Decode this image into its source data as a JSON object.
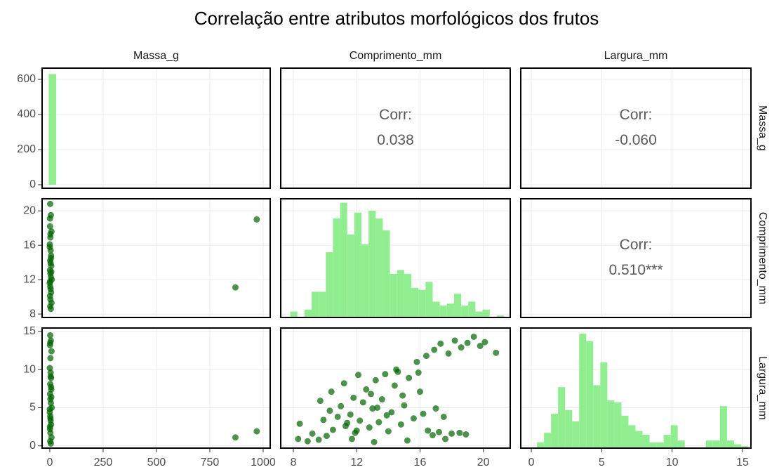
{
  "chart_data": {
    "type": "pairs",
    "title": "Correlação entre atributos morfológicos dos frutos",
    "point_color": "#006400",
    "bar_color": "#90ee90",
    "grid": true,
    "columns": [
      {
        "name": "Massa_g",
        "xlim": [
          -36,
          1033
        ],
        "xticks": [
          0,
          250,
          500,
          750,
          1000
        ]
      },
      {
        "name": "Comprimento_mm",
        "xlim": [
          7.2,
          21.7
        ],
        "xticks": [
          8,
          12,
          16,
          20
        ]
      },
      {
        "name": "Largura_mm",
        "xlim": [
          -0.75,
          15.6
        ],
        "xticks": [
          0,
          5,
          10,
          15
        ]
      }
    ],
    "rows": [
      {
        "name": "Massa_g",
        "ylim": [
          -20,
          664
        ],
        "yticks": [
          0,
          200,
          400,
          600
        ]
      },
      {
        "name": "Comprimento_mm",
        "ylim": [
          7.6,
          21.4
        ],
        "yticks": [
          8,
          12,
          16,
          20
        ]
      },
      {
        "name": "Largura_mm",
        "ylim": [
          -0.3,
          15.45
        ],
        "yticks": [
          0,
          5,
          10,
          15
        ]
      }
    ],
    "panels": [
      {
        "type": "histogram",
        "bins": [
          -5,
          30
        ],
        "counts": [
          630
        ]
      },
      {
        "type": "corr",
        "label": "Corr:",
        "values": [
          0.038
        ],
        "value_labels": [
          "0.038"
        ]
      },
      {
        "type": "corr",
        "label": "Corr:",
        "values": [
          -0.06
        ],
        "value_labels": [
          "-0.060"
        ]
      },
      {
        "type": "scatter",
        "x": [
          2,
          5,
          1,
          8,
          3,
          0,
          4,
          6,
          2,
          7,
          1,
          3,
          5,
          9,
          0,
          2,
          4,
          6,
          1,
          3,
          8,
          2,
          5,
          0,
          3,
          7,
          1,
          4,
          2,
          6,
          870,
          970
        ],
        "y": [
          20.8,
          19.5,
          18.2,
          17.6,
          16.9,
          16.1,
          15.4,
          14.8,
          14.2,
          13.6,
          13.1,
          12.7,
          12.3,
          12.0,
          11.6,
          11.2,
          10.9,
          10.5,
          10.1,
          9.7,
          9.3,
          8.9,
          8.6,
          15.8,
          17.3,
          12.9,
          19.1,
          13.9,
          11.8,
          14.5,
          11.1,
          19.0
        ]
      },
      {
        "type": "histogram",
        "ylim": [
          0,
          60
        ],
        "bins": [
          7.8,
          8.25,
          8.7,
          9.15,
          9.6,
          10.05,
          10.5,
          10.95,
          11.4,
          11.85,
          12.3,
          12.75,
          13.2,
          13.65,
          14.1,
          14.55,
          15,
          15.45,
          15.9,
          16.35,
          16.8,
          17.25,
          17.7,
          18.15,
          18.6,
          19.05,
          19.5,
          19.95,
          20.4,
          20.85,
          21.3
        ],
        "counts": [
          3,
          0,
          4,
          13,
          13,
          33,
          50,
          58,
          42,
          53,
          37,
          54,
          50,
          44,
          22,
          24,
          22,
          15,
          14,
          18,
          8,
          6,
          7,
          12,
          6,
          8,
          3,
          4,
          0,
          1
        ]
      },
      {
        "type": "corr",
        "label": "Corr:",
        "values": [
          0.51
        ],
        "value_labels": [
          "0.510***"
        ]
      },
      {
        "type": "scatter",
        "x": [
          2,
          5,
          1,
          8,
          3,
          0,
          4,
          6,
          2,
          7,
          1,
          3,
          5,
          9,
          0,
          2,
          4,
          6,
          1,
          3,
          8,
          2,
          5,
          0,
          3,
          7,
          1,
          4,
          2,
          6,
          870,
          970
        ],
        "y": [
          14.5,
          13.8,
          13.2,
          12.4,
          11.5,
          10.2,
          9.6,
          8.9,
          8.1,
          7.4,
          6.8,
          6.1,
          5.6,
          5.0,
          4.4,
          3.9,
          3.3,
          2.8,
          2.2,
          1.7,
          1.1,
          0.6,
          0.3,
          4.8,
          3.6,
          6.4,
          2.5,
          9.1,
          13.5,
          7.7,
          1.1,
          1.9
        ]
      },
      {
        "type": "scatter",
        "x": [
          8.4,
          8.3,
          9.2,
          9.6,
          10.1,
          10.5,
          9.9,
          10.3,
          10.8,
          11.0,
          11.3,
          11.6,
          11.8,
          11.9,
          12.2,
          12.4,
          12.6,
          12.8,
          13.0,
          13.2,
          13.4,
          13.6,
          13.8,
          14.0,
          14.2,
          14.4,
          14.6,
          14.8,
          15.0,
          15.3,
          15.6,
          15.9,
          16.2,
          16.5,
          16.8,
          17.2,
          17.6,
          18.0,
          18.5,
          18.9,
          16.4,
          16.9,
          17.3,
          17.8,
          18.2,
          18.6,
          19.0,
          19.4,
          19.8,
          20.1,
          20.8,
          15.8,
          14.5,
          12.1,
          11.2,
          10.4,
          9.7,
          8.9,
          13.1,
          15.2,
          11.7,
          12.9,
          13.9,
          14.9,
          16.0,
          17.0,
          17.5,
          11.4,
          12.0,
          13.3
        ],
        "y": [
          2.9,
          0.9,
          1.6,
          0.8,
          1.3,
          2.1,
          3.4,
          4.6,
          3.8,
          5.2,
          2.6,
          4.1,
          6.3,
          1.7,
          3.3,
          5.7,
          7.4,
          2.4,
          4.9,
          8.6,
          3.1,
          6.1,
          9.4,
          1.9,
          4.4,
          7.9,
          9.7,
          2.8,
          5.3,
          8.9,
          3.6,
          9.6,
          4.2,
          2.0,
          1.4,
          1.8,
          0.9,
          1.6,
          1.7,
          1.5,
          11.8,
          12.6,
          13.4,
          12.1,
          13.8,
          12.9,
          13.5,
          14.3,
          13.1,
          13.6,
          12.2,
          11.0,
          10.0,
          9.3,
          8.2,
          7.1,
          5.9,
          0.6,
          0.5,
          0.7,
          0.9,
          6.8,
          4.0,
          6.6,
          7.1,
          4.9,
          3.8,
          3.0,
          2.0,
          5.0
        ]
      },
      {
        "type": "histogram",
        "ylim": [
          0,
          63
        ],
        "bins": [
          0.4,
          0.9,
          1.4,
          1.9,
          2.4,
          2.9,
          3.4,
          3.9,
          4.4,
          4.9,
          5.4,
          5.9,
          6.4,
          6.9,
          7.4,
          7.9,
          8.4,
          8.9,
          9.4,
          9.9,
          10.4,
          10.9,
          11.4,
          11.9,
          12.4,
          12.9,
          13.4,
          13.9,
          14.4,
          14.9,
          15.4
        ],
        "counts": [
          3,
          8,
          18,
          32,
          20,
          14,
          60,
          56,
          33,
          45,
          25,
          24,
          17,
          12,
          9,
          7,
          3,
          3,
          7,
          12,
          4,
          0,
          0,
          0,
          4,
          4,
          22,
          4,
          2,
          1
        ]
      }
    ]
  }
}
